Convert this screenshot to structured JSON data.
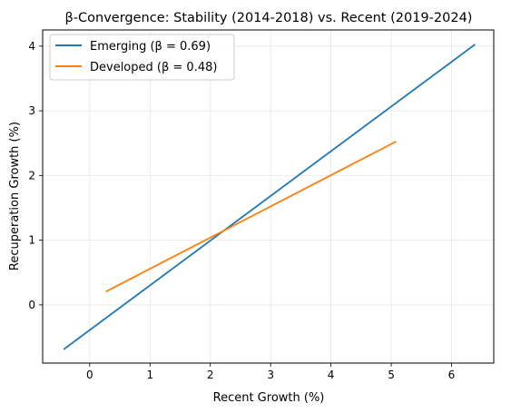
{
  "chart_data": {
    "type": "line",
    "title": "β-Convergence: Stability (2014-2018) vs. Recent (2019-2024)",
    "xlabel": "Recent Growth (%)",
    "ylabel": "Recuperation Growth (%)",
    "xlim": [
      -0.78,
      6.7
    ],
    "ylim": [
      -0.9,
      4.25
    ],
    "xticks": [
      0,
      1,
      2,
      3,
      4,
      5,
      6
    ],
    "yticks": [
      0,
      1,
      2,
      3,
      4
    ],
    "grid": true,
    "legend_position": "top-left",
    "series": [
      {
        "name": "Emerging (β = 0.69)",
        "color": "#1f77b4",
        "points": [
          [
            -0.42,
            -0.68
          ],
          [
            6.38,
            4.02
          ]
        ]
      },
      {
        "name": "Developed (β = 0.48)",
        "color": "#ff7f0e",
        "points": [
          [
            0.28,
            0.21
          ],
          [
            5.07,
            2.52
          ]
        ]
      }
    ]
  }
}
